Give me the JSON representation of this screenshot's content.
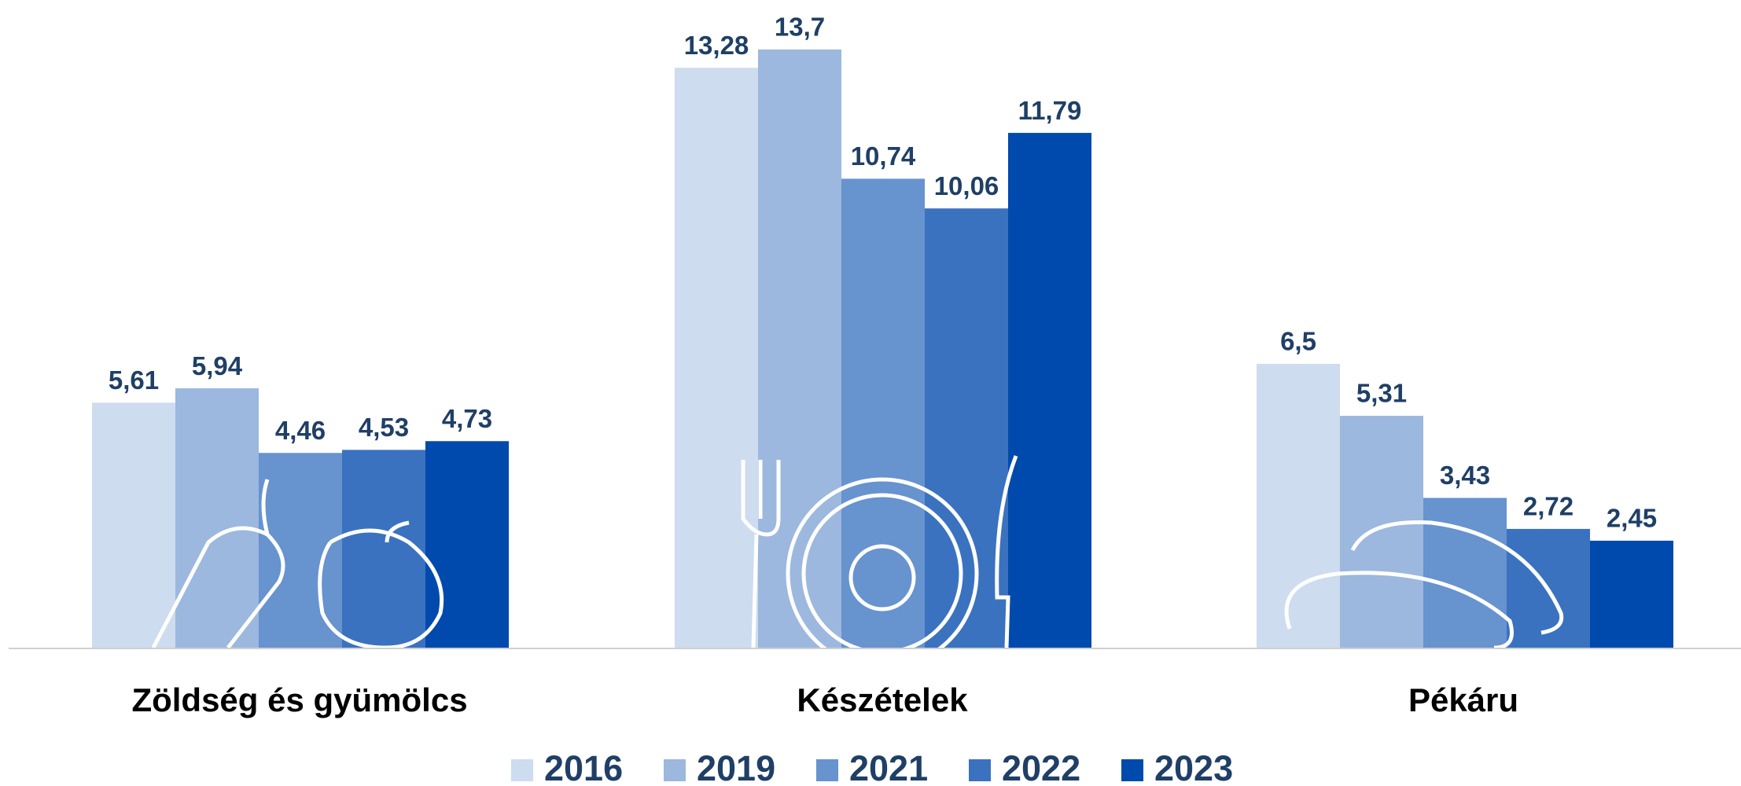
{
  "chart_data": {
    "type": "bar",
    "categories": [
      "Zöldség és gyümölcs",
      "Készételek",
      "Pékáru"
    ],
    "series": [
      {
        "name": "2016",
        "color": "#cddcee",
        "values": [
          5.61,
          13.28,
          6.5
        ],
        "value_labels": [
          "5,61",
          "13,28",
          "6,5"
        ]
      },
      {
        "name": "2019",
        "color": "#9cb8de",
        "values": [
          5.94,
          13.7,
          5.31
        ],
        "value_labels": [
          "5,94",
          "13,7",
          "5,31"
        ]
      },
      {
        "name": "2021",
        "color": "#6793cf",
        "values": [
          4.46,
          10.74,
          3.43
        ],
        "value_labels": [
          "4,46",
          "10,74",
          "3,43"
        ]
      },
      {
        "name": "2022",
        "color": "#3a72c0",
        "values": [
          4.53,
          10.06,
          2.72
        ],
        "value_labels": [
          "4,53",
          "10,06",
          "2,72"
        ]
      },
      {
        "name": "2023",
        "color": "#004aad",
        "values": [
          4.73,
          11.79,
          2.45
        ],
        "value_labels": [
          "4,73",
          "11,79",
          "2,45"
        ]
      }
    ],
    "legend": "bottom"
  }
}
